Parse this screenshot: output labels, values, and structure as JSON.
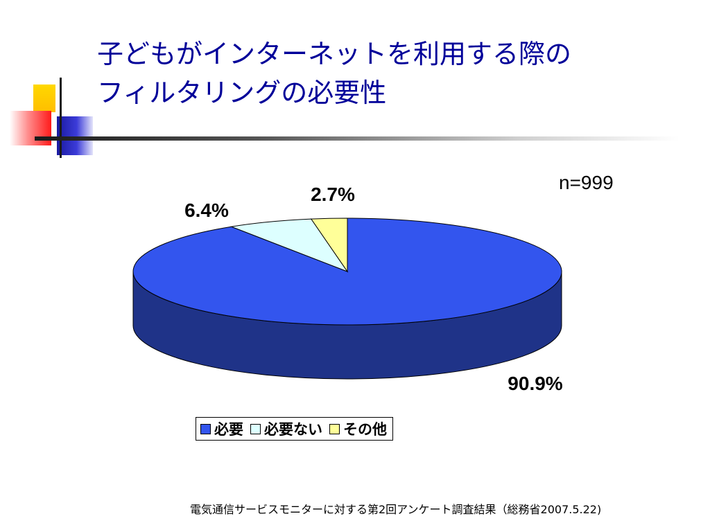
{
  "title": {
    "line1": "子どもがインターネットを利用する際の",
    "line2": "フィルタリングの必要性"
  },
  "sample_size": "n=999",
  "source": "電気通信サービスモニターに対する第2回アンケート調査結果（総務省2007.5.22)",
  "chart_data": {
    "type": "pie",
    "title": "子どもがインターネットを利用する際のフィルタリングの必要性",
    "categories": [
      "必要",
      "必要ない",
      "その他"
    ],
    "values": [
      90.9,
      6.4,
      2.7
    ],
    "labels": [
      "90.9%",
      "6.4%",
      "2.7%"
    ],
    "colors": [
      "#3355ee",
      "#ddffff",
      "#ffff99"
    ],
    "side_colors": [
      "#1f3388",
      "#a8c4c4",
      "#c8c878"
    ],
    "legend_position": "bottom",
    "style": "3d"
  },
  "legend": {
    "items": [
      {
        "label": "必要",
        "color": "#3355ee"
      },
      {
        "label": "必要ない",
        "color": "#ddffff"
      },
      {
        "label": "その他",
        "color": "#ffff99"
      }
    ]
  }
}
